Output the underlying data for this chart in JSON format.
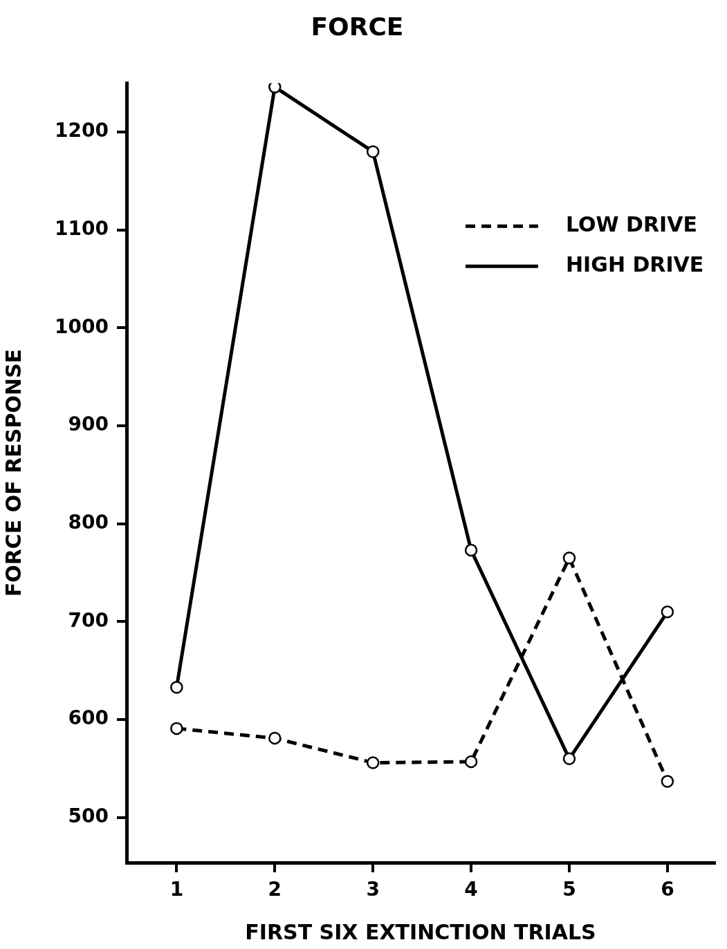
{
  "chart_data": {
    "type": "line",
    "title": "FORCE",
    "xlabel": "FIRST SIX EXTINCTION TRIALS",
    "ylabel": "FORCE OF RESPONSE",
    "x": [
      1,
      2,
      3,
      4,
      5,
      6
    ],
    "xlim": [
      0.49,
      6.48
    ],
    "xticks": [
      1,
      2,
      3,
      4,
      5,
      6
    ],
    "ylim": [
      454,
      1250
    ],
    "yticks": [
      500,
      600,
      700,
      800,
      900,
      1000,
      1100,
      1200
    ],
    "grid": false,
    "legend": "top right",
    "marker": "circle",
    "series": [
      {
        "name": "LOW DRIVE",
        "color": "#000000",
        "line_style": "dashed",
        "values": [
          591,
          581,
          556,
          557,
          765,
          537
        ]
      },
      {
        "name": "HIGH DRIVE",
        "color": "#000000",
        "line_style": "solid",
        "values": [
          633,
          1246,
          1180,
          773,
          560,
          710
        ]
      }
    ]
  }
}
